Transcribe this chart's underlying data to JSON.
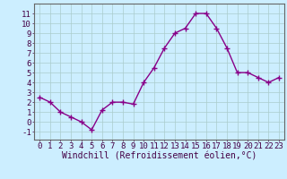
{
  "x": [
    0,
    1,
    2,
    3,
    4,
    5,
    6,
    7,
    8,
    9,
    10,
    11,
    12,
    13,
    14,
    15,
    16,
    17,
    18,
    19,
    20,
    21,
    22,
    23
  ],
  "y": [
    2.5,
    2.0,
    1.0,
    0.5,
    0.0,
    -0.8,
    1.2,
    2.0,
    2.0,
    1.8,
    4.0,
    5.5,
    7.5,
    9.0,
    9.5,
    11.0,
    11.0,
    9.5,
    7.5,
    5.0,
    5.0,
    4.5,
    4.0,
    4.5
  ],
  "line_color": "#880088",
  "marker": "+",
  "marker_size": 4,
  "linewidth": 1.0,
  "xlabel": "Windchill (Refroidissement éolien,°C)",
  "xlabel_fontsize": 7,
  "ylabel_ticks": [
    -1,
    0,
    1,
    2,
    3,
    4,
    5,
    6,
    7,
    8,
    9,
    10,
    11
  ],
  "ylim": [
    -1.8,
    12.0
  ],
  "xlim": [
    -0.5,
    23.5
  ],
  "bg_color": "#cceeff",
  "grid_color": "#aacccc",
  "tick_fontsize": 6.5,
  "spine_color": "#666666"
}
